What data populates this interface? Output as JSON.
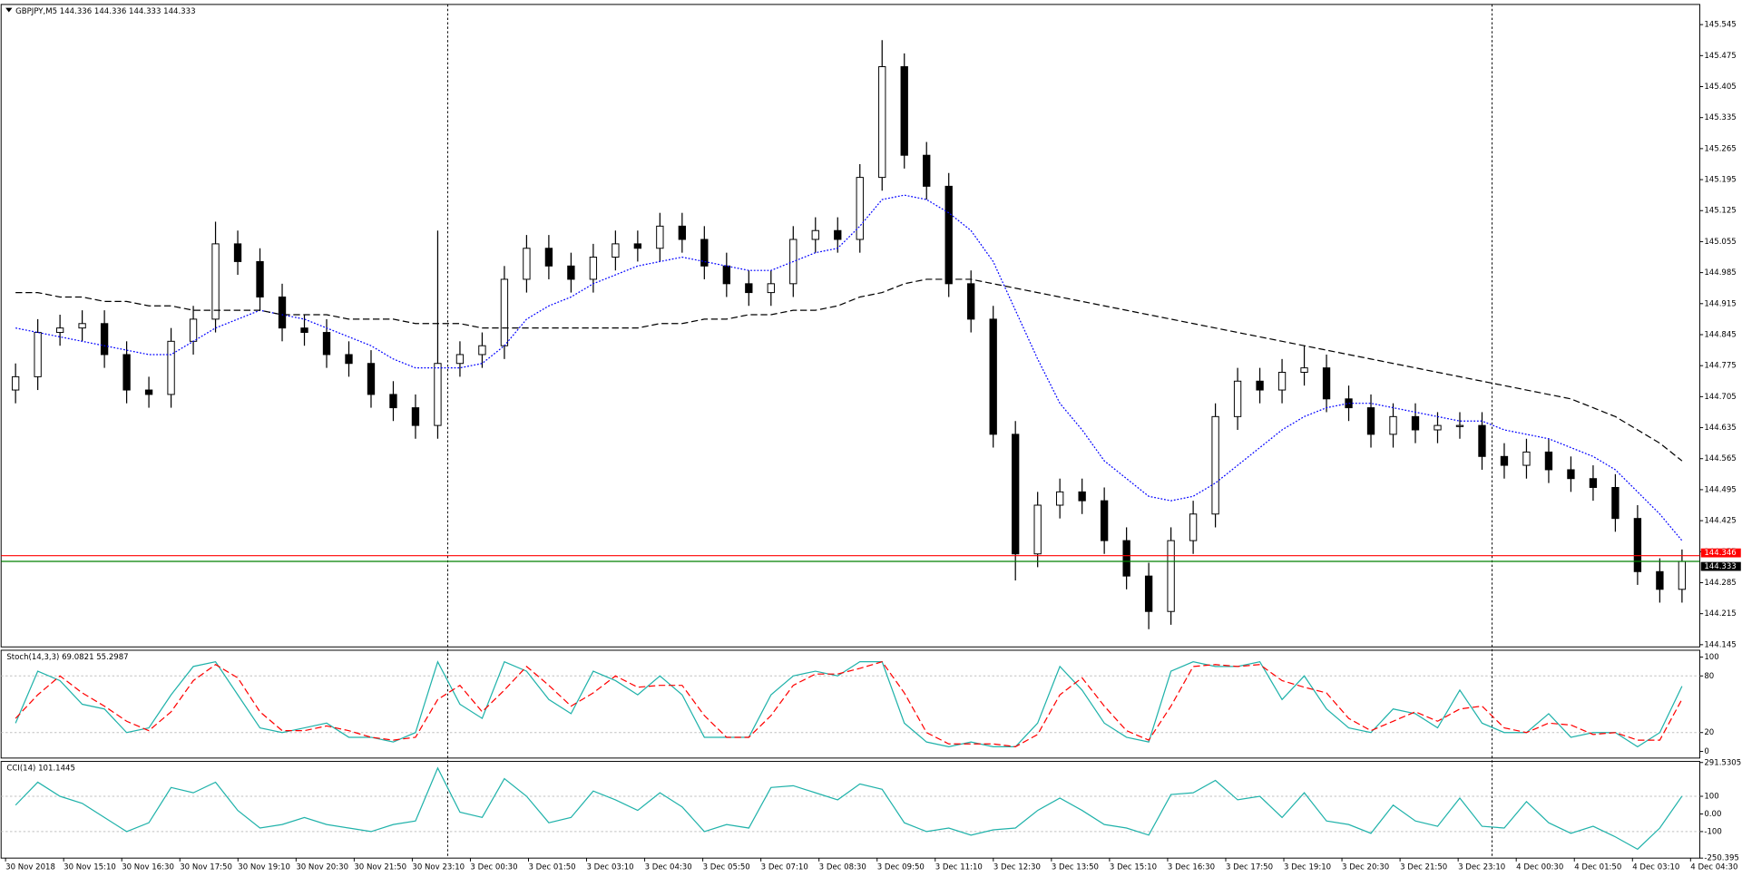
{
  "chart_data": [
    {
      "type": "candlestick",
      "title": "GBPJPY,M5  144.336 144.336 144.333 144.333",
      "open": [
        144.72,
        144.75,
        144.85,
        144.86,
        144.87,
        144.8,
        144.72,
        144.71,
        144.83,
        144.88,
        145.05,
        145.01,
        144.93,
        144.86,
        144.85,
        144.8,
        144.78,
        144.71,
        144.68,
        144.64,
        144.78,
        144.8,
        144.82,
        144.97,
        145.04,
        145.0,
        144.97,
        145.02,
        145.05,
        145.04,
        145.09,
        145.06,
        145.0,
        144.96,
        144.94,
        144.96,
        145.06,
        145.08,
        145.06,
        145.2,
        145.45,
        145.25,
        145.18,
        144.96,
        144.88,
        144.62,
        144.35,
        144.46,
        144.49,
        144.47,
        144.38,
        144.3,
        144.22,
        144.38,
        144.44,
        144.66,
        144.74,
        144.72,
        144.76,
        144.77,
        144.7,
        144.68,
        144.62,
        144.66,
        144.63,
        144.64,
        144.64,
        144.57,
        144.55,
        144.58,
        144.54,
        144.52,
        144.5,
        144.43,
        144.31,
        144.27
      ],
      "high": [
        144.78,
        144.88,
        144.89,
        144.9,
        144.9,
        144.83,
        144.75,
        144.86,
        144.91,
        145.1,
        145.08,
        145.04,
        144.96,
        144.89,
        144.88,
        144.83,
        144.81,
        144.74,
        144.71,
        145.08,
        144.83,
        144.85,
        145.0,
        145.07,
        145.07,
        145.03,
        145.05,
        145.08,
        145.08,
        145.12,
        145.12,
        145.09,
        145.03,
        144.99,
        144.99,
        145.09,
        145.11,
        145.11,
        145.23,
        145.51,
        145.48,
        145.28,
        145.21,
        144.99,
        144.91,
        144.65,
        144.49,
        144.52,
        144.52,
        144.5,
        144.41,
        144.33,
        144.41,
        144.47,
        144.69,
        144.77,
        144.77,
        144.79,
        144.82,
        144.8,
        144.73,
        144.71,
        144.69,
        144.69,
        144.67,
        144.67,
        144.67,
        144.6,
        144.61,
        144.61,
        144.57,
        144.55,
        144.53,
        144.46,
        144.34,
        144.36
      ],
      "low": [
        144.69,
        144.72,
        144.82,
        144.83,
        144.77,
        144.69,
        144.68,
        144.68,
        144.8,
        144.85,
        144.98,
        144.9,
        144.83,
        144.82,
        144.77,
        144.75,
        144.68,
        144.65,
        144.61,
        144.61,
        144.75,
        144.77,
        144.79,
        144.94,
        144.97,
        144.94,
        144.94,
        144.99,
        145.01,
        145.01,
        145.03,
        144.97,
        144.93,
        144.91,
        144.91,
        144.93,
        145.03,
        145.03,
        145.03,
        145.17,
        145.22,
        145.15,
        144.93,
        144.85,
        144.59,
        144.29,
        144.32,
        144.43,
        144.44,
        144.35,
        144.27,
        144.18,
        144.19,
        144.35,
        144.41,
        144.63,
        144.69,
        144.69,
        144.73,
        144.67,
        144.65,
        144.59,
        144.59,
        144.6,
        144.6,
        144.61,
        144.54,
        144.52,
        144.52,
        144.51,
        144.49,
        144.47,
        144.4,
        144.28,
        144.24,
        144.24
      ],
      "close": [
        144.75,
        144.85,
        144.86,
        144.87,
        144.8,
        144.72,
        144.71,
        144.83,
        144.88,
        145.05,
        145.01,
        144.93,
        144.86,
        144.85,
        144.8,
        144.78,
        144.71,
        144.68,
        144.64,
        144.78,
        144.8,
        144.82,
        144.97,
        145.04,
        145.0,
        144.97,
        145.02,
        145.05,
        145.04,
        145.09,
        145.06,
        145.0,
        144.96,
        144.94,
        144.96,
        145.06,
        145.08,
        145.06,
        145.2,
        145.45,
        145.25,
        145.18,
        144.96,
        144.88,
        144.62,
        144.35,
        144.46,
        144.49,
        144.47,
        144.38,
        144.3,
        144.22,
        144.38,
        144.44,
        144.66,
        144.74,
        144.72,
        144.76,
        144.77,
        144.7,
        144.68,
        144.62,
        144.66,
        144.63,
        144.64,
        144.64,
        144.57,
        144.55,
        144.58,
        144.54,
        144.52,
        144.5,
        144.43,
        144.31,
        144.27,
        144.333
      ],
      "up_color": "#ffffff",
      "down_color": "#000000",
      "overlays": [
        {
          "color": "#0000ff",
          "style": "dotted",
          "values": [
            144.86,
            144.85,
            144.84,
            144.83,
            144.82,
            144.81,
            144.8,
            144.8,
            144.83,
            144.86,
            144.88,
            144.9,
            144.89,
            144.88,
            144.86,
            144.84,
            144.82,
            144.79,
            144.77,
            144.77,
            144.77,
            144.78,
            144.82,
            144.88,
            144.91,
            144.93,
            144.96,
            144.98,
            145.0,
            145.01,
            145.02,
            145.01,
            145.0,
            144.99,
            144.99,
            145.01,
            145.03,
            145.04,
            145.09,
            145.15,
            145.16,
            145.15,
            145.12,
            145.08,
            145.01,
            144.9,
            144.79,
            144.69,
            144.63,
            144.56,
            144.52,
            144.48,
            144.47,
            144.48,
            144.51,
            144.55,
            144.59,
            144.63,
            144.66,
            144.68,
            144.69,
            144.69,
            144.68,
            144.67,
            144.66,
            144.65,
            144.65,
            144.63,
            144.62,
            144.61,
            144.59,
            144.57,
            144.54,
            144.49,
            144.44,
            144.38
          ]
        },
        {
          "color": "#000000",
          "style": "dashed",
          "values": [
            144.94,
            144.94,
            144.93,
            144.93,
            144.92,
            144.92,
            144.91,
            144.91,
            144.9,
            144.9,
            144.9,
            144.9,
            144.89,
            144.89,
            144.89,
            144.88,
            144.88,
            144.88,
            144.87,
            144.87,
            144.87,
            144.86,
            144.86,
            144.86,
            144.86,
            144.86,
            144.86,
            144.86,
            144.86,
            144.87,
            144.87,
            144.88,
            144.88,
            144.89,
            144.89,
            144.9,
            144.9,
            144.91,
            144.93,
            144.94,
            144.96,
            144.97,
            144.97,
            144.97,
            144.96,
            144.95,
            144.94,
            144.93,
            144.92,
            144.91,
            144.9,
            144.89,
            144.88,
            144.87,
            144.86,
            144.85,
            144.84,
            144.83,
            144.82,
            144.81,
            144.8,
            144.79,
            144.78,
            144.77,
            144.76,
            144.75,
            144.74,
            144.73,
            144.72,
            144.71,
            144.7,
            144.68,
            144.66,
            144.63,
            144.6,
            144.56
          ]
        }
      ],
      "ylim": [
        144.14,
        145.588
      ],
      "yticks": [
        145.545,
        145.475,
        145.405,
        145.335,
        145.265,
        145.195,
        145.125,
        145.055,
        144.985,
        144.915,
        144.845,
        144.775,
        144.705,
        144.635,
        144.565,
        144.495,
        144.425,
        144.355,
        144.285,
        144.215,
        144.145
      ],
      "ask_line": {
        "value": 144.346,
        "color": "#ff0000"
      },
      "bid_line": {
        "value": 144.333,
        "color": "#008000"
      },
      "xtick_labels": [
        "30 Nov 2018",
        "30 Nov 15:10",
        "30 Nov 16:30",
        "30 Nov 17:50",
        "30 Nov 19:10",
        "30 Nov 20:30",
        "30 Nov 21:50",
        "30 Nov 23:10",
        "3 Dec 00:30",
        "3 Dec 01:50",
        "3 Dec 03:10",
        "3 Dec 04:30",
        "3 Dec 05:50",
        "3 Dec 07:10",
        "3 Dec 08:30",
        "3 Dec 09:50",
        "3 Dec 11:10",
        "3 Dec 12:30",
        "3 Dec 13:50",
        "3 Dec 15:10",
        "3 Dec 16:30",
        "3 Dec 17:50",
        "3 Dec 19:10",
        "3 Dec 20:30",
        "3 Dec 21:50",
        "3 Dec 23:10",
        "4 Dec 00:30",
        "4 Dec 01:50",
        "4 Dec 03:10",
        "4 Dec 04:30"
      ]
    },
    {
      "type": "line",
      "title": "Stoch(14,3,3) 69.0821 55.2987",
      "series": [
        {
          "color": "#20b2aa",
          "style": "solid",
          "values": [
            30,
            85,
            75,
            50,
            45,
            20,
            25,
            60,
            90,
            95,
            60,
            25,
            20,
            25,
            30,
            15,
            15,
            10,
            20,
            95,
            50,
            35,
            95,
            85,
            55,
            40,
            85,
            75,
            60,
            80,
            60,
            15,
            15,
            15,
            60,
            80,
            85,
            80,
            95,
            95,
            30,
            10,
            5,
            10,
            5,
            5,
            30,
            90,
            65,
            30,
            15,
            10,
            85,
            95,
            90,
            90,
            95,
            55,
            80,
            45,
            25,
            20,
            45,
            40,
            25,
            65,
            30,
            20,
            20,
            40,
            15,
            20,
            20,
            5,
            20,
            69.0821
          ]
        },
        {
          "color": "#ff0000",
          "style": "dashed",
          "values": [
            35,
            60,
            80,
            62,
            48,
            32,
            22,
            42,
            75,
            92,
            78,
            42,
            22,
            22,
            27,
            22,
            15,
            12,
            15,
            55,
            70,
            42,
            65,
            90,
            70,
            48,
            62,
            80,
            68,
            70,
            70,
            38,
            15,
            15,
            38,
            70,
            82,
            82,
            88,
            95,
            62,
            20,
            8,
            8,
            8,
            5,
            18,
            60,
            78,
            48,
            22,
            12,
            48,
            90,
            92,
            90,
            92,
            75,
            68,
            62,
            35,
            22,
            32,
            42,
            32,
            45,
            48,
            25,
            20,
            30,
            28,
            18,
            20,
            12,
            12,
            55.2987
          ]
        }
      ],
      "ylim": [
        -7,
        106
      ],
      "yticks": [
        100,
        80,
        20,
        0
      ],
      "levels": [
        80,
        20
      ]
    },
    {
      "type": "line",
      "title": "CCI(14) 101.1445",
      "series": [
        {
          "color": "#20b2aa",
          "style": "solid",
          "values": [
            50,
            180,
            100,
            60,
            -20,
            -100,
            -50,
            150,
            120,
            180,
            20,
            -80,
            -60,
            -20,
            -60,
            -80,
            -100,
            -60,
            -40,
            260,
            10,
            -20,
            200,
            100,
            -50,
            -20,
            130,
            80,
            20,
            120,
            40,
            -100,
            -60,
            -80,
            150,
            160,
            120,
            80,
            170,
            140,
            -50,
            -100,
            -80,
            -120,
            -90,
            -80,
            20,
            90,
            20,
            -60,
            -80,
            -120,
            110,
            120,
            190,
            80,
            100,
            -20,
            120,
            -40,
            -60,
            -110,
            50,
            -40,
            -70,
            90,
            -70,
            -80,
            70,
            -50,
            -110,
            -70,
            -130,
            -200,
            -80,
            101.1445
          ]
        }
      ],
      "ylim": [
        -250.395,
        291.5305
      ],
      "yticks": [
        291.5305,
        100,
        {
          "value": 0,
          "label": "0.00"
        },
        -100,
        -250.395
      ],
      "levels": [
        100,
        -100
      ]
    }
  ]
}
